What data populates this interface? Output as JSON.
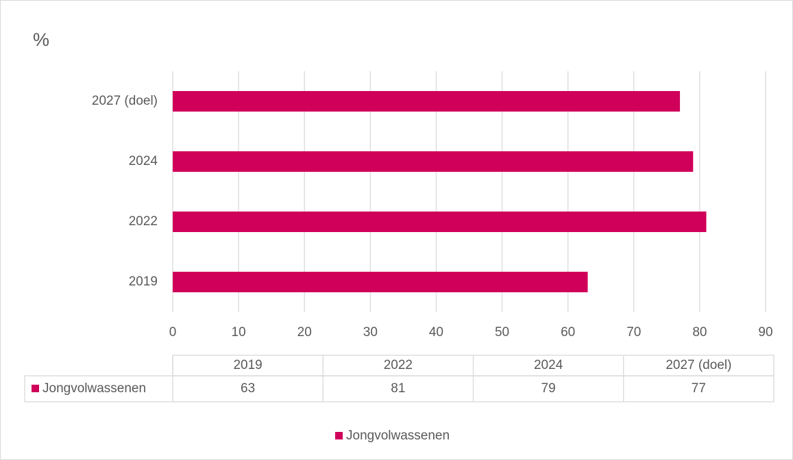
{
  "chart_data": {
    "type": "bar",
    "orientation": "horizontal",
    "title": "%",
    "categories": [
      "2019",
      "2022",
      "2024",
      "2027 (doel)"
    ],
    "series": [
      {
        "name": "Jongvolwassenen",
        "color": "#d0005a",
        "values": [
          63,
          81,
          79,
          77
        ]
      }
    ],
    "xlim": [
      0,
      90
    ],
    "xticks": [
      0,
      10,
      20,
      30,
      40,
      50,
      60,
      70,
      80,
      90
    ],
    "grid": true,
    "data_table": true,
    "legend": "bottom"
  }
}
